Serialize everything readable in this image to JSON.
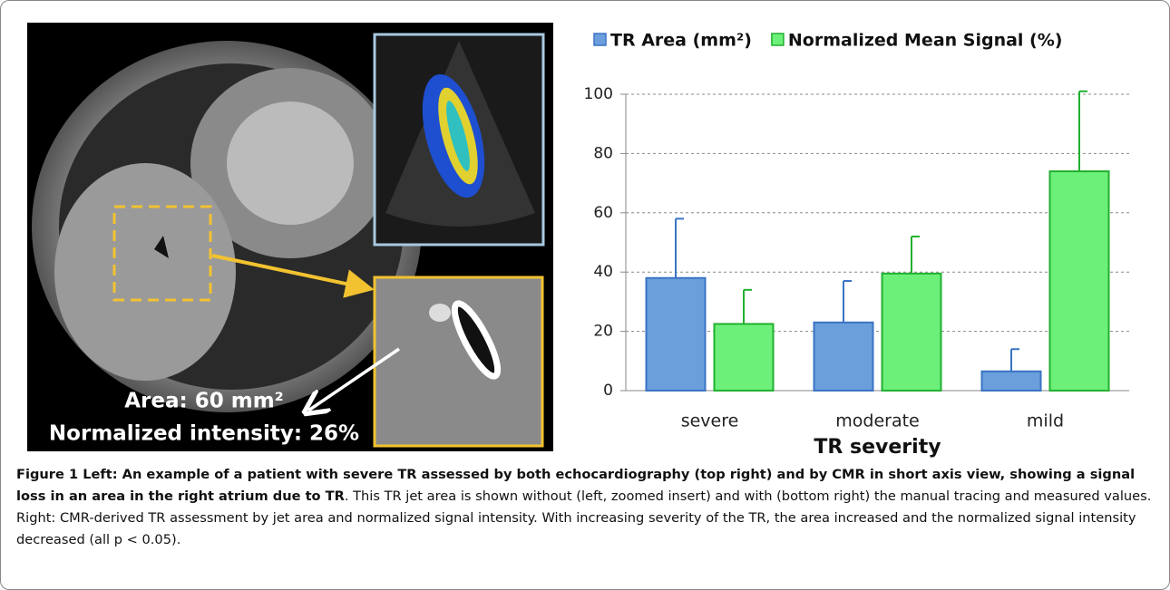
{
  "chart_data": {
    "type": "bar",
    "xlabel": "TR severity",
    "categories": [
      "severe",
      "moderate",
      "mild"
    ],
    "series": [
      {
        "name": "TR Area (mm²)",
        "color": "#6a9fdc",
        "values": [
          38,
          23,
          6.5
        ],
        "errors": [
          20,
          14,
          7.5
        ]
      },
      {
        "name": "Normalized Mean Signal (%)",
        "color": "#6cf07a",
        "values": [
          22.5,
          39.5,
          74
        ],
        "errors": [
          11.5,
          12.5,
          27
        ]
      }
    ],
    "ylim": [
      0,
      100
    ],
    "yticks": [
      0,
      20,
      40,
      60,
      80,
      100
    ],
    "grid": true,
    "legend": "top"
  },
  "image_labels": {
    "area": "Area: 60 mm²",
    "intensity": "Normalized intensity: 26%"
  },
  "caption": {
    "bold": "Figure 1 Left: An example of a patient with severe TR assessed by both echocardiography (top right) and by CMR in short axis view, showing a signal loss in an area in the right atrium due to TR",
    "text": ". This TR jet area is shown without (left, zoomed insert) and with (bottom right) the manual tracing and measured values. Right: CMR-derived TR assessment by jet area and normalized signal intensity. With increasing severity of the TR, the area increased and the normalized signal intensity decreased (all p < 0.05)."
  }
}
